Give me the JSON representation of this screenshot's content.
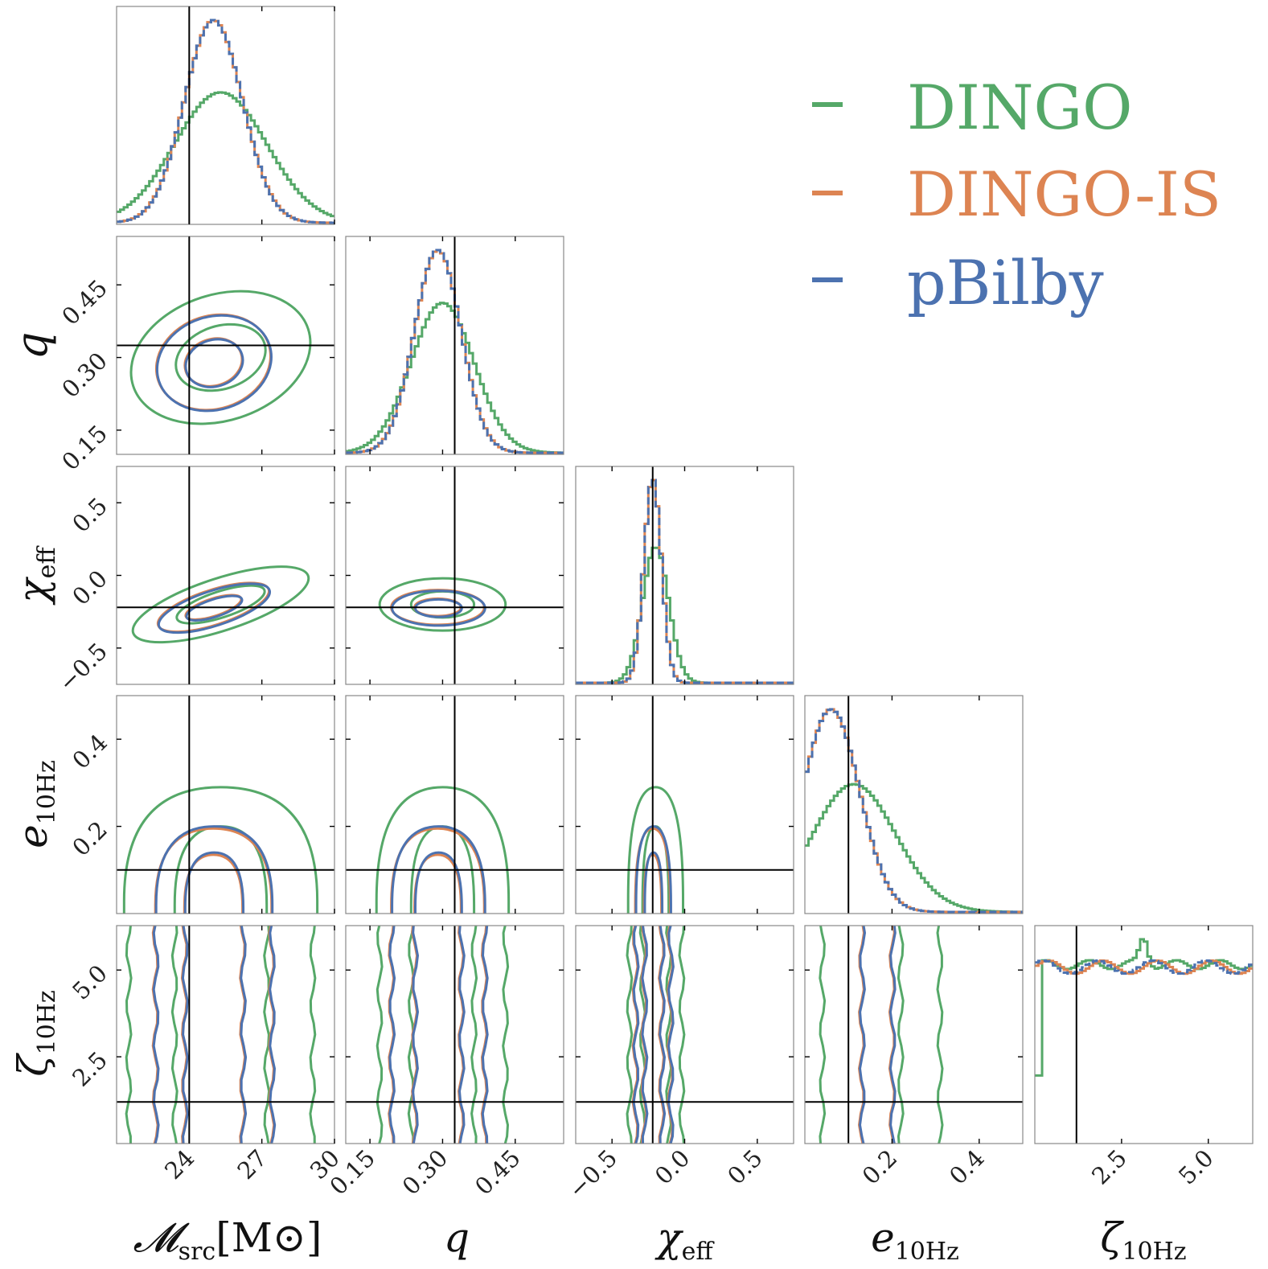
{
  "chart_data": {
    "type": "corner",
    "title": "",
    "parameters": [
      {
        "key": "mc",
        "label": "𝓜src[M⊙]",
        "range": [
          21,
          30
        ],
        "ticks": [
          24,
          27,
          30
        ],
        "truth": 24.0,
        "mean": 25.0,
        "sd": 1.2,
        "dingo_mean": 25.3,
        "dingo_sd": 1.9
      },
      {
        "key": "q",
        "label": "q",
        "range": [
          0.1,
          0.55
        ],
        "ticks": [
          0.15,
          0.3,
          0.45
        ],
        "truth": 0.325,
        "mean": 0.29,
        "sd": 0.048,
        "dingo_mean": 0.3,
        "dingo_sd": 0.065
      },
      {
        "key": "chi",
        "label": "χeff",
        "range": [
          -0.75,
          0.75
        ],
        "ticks": [
          -0.5,
          0.0,
          0.5
        ],
        "tick_labels": [
          "−0.5",
          "0.0",
          "0.5"
        ],
        "truth": -0.22,
        "mean": -0.22,
        "sd": 0.06,
        "dingo_mean": -0.2,
        "dingo_sd": 0.09
      },
      {
        "key": "e",
        "label": "e10Hz",
        "range": [
          0.0,
          0.5
        ],
        "ticks": [
          0.2,
          0.4
        ],
        "truth": 0.1,
        "mean": 0.06,
        "sd": 0.07,
        "dingo_mean": 0.13,
        "dingo_sd": 0.09
      },
      {
        "key": "zeta",
        "label": "ζ10Hz",
        "range": [
          0.0,
          6.28
        ],
        "ticks": [
          2.5,
          5.0
        ],
        "truth": 1.2,
        "mean": 3.14,
        "sd": 10,
        "dingo_mean": 3.14,
        "dingo_sd": 10
      }
    ],
    "series": [
      {
        "name": "DINGO",
        "color": "#55a868"
      },
      {
        "name": "DINGO-IS",
        "color": "#dd8452"
      },
      {
        "name": "pBilby",
        "color": "#4c72b0"
      }
    ],
    "legend_position": "top-right",
    "y_tick_rows": {
      "q": [
        "0.15",
        "0.30",
        "0.45"
      ],
      "chi": [
        "−0.5",
        "0.0",
        "0.5"
      ],
      "e": [
        "0.2",
        "0.4"
      ],
      "zeta": [
        "2.5",
        "5.0"
      ]
    },
    "x_tick_labels": {
      "mc": [
        "24",
        "27",
        "30"
      ],
      "q": [
        "0.15",
        "0.30",
        "0.45"
      ],
      "chi": [
        "−0.5",
        "0.0",
        "0.5"
      ],
      "e": [
        "0.2",
        "0.4"
      ],
      "zeta": [
        "2.5",
        "5.0"
      ]
    }
  },
  "axis_labels": {
    "mc_base": "𝓜",
    "mc_sub": "src",
    "mc_unit": "[M⊙]",
    "q": "q",
    "chi_base": "χ",
    "chi_sub": "eff",
    "e_base": "e",
    "e_sub": "10Hz",
    "zeta_base": "ζ",
    "zeta_sub": "10Hz"
  },
  "legend": {
    "dingo": "DINGO",
    "dingo_is": "DINGO-IS",
    "pbilby": "pBilby"
  }
}
